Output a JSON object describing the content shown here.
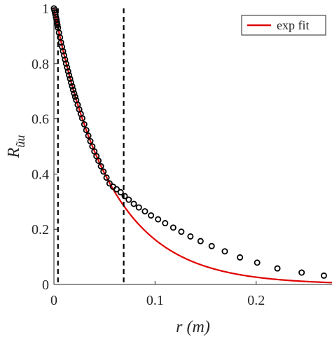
{
  "chart_data": {
    "type": "scatter",
    "xlabel": "r (m)",
    "ylabel": "R_ũu",
    "xlim": [
      0,
      0.275
    ],
    "ylim": [
      0,
      1
    ],
    "x_ticks": [
      "0",
      "0.1",
      "0.2"
    ],
    "y_ticks": [
      "0",
      "0.2",
      "0.4",
      "0.6",
      "0.8",
      "1"
    ],
    "grid": false,
    "legend": {
      "position": "top-right",
      "entries": [
        "exp fit"
      ]
    },
    "fit_color": "#e00000",
    "marker_color": "#000000",
    "vertical_lines_x": [
      0.004,
      0.069
    ],
    "fit_function": "exp(-r/0.055)",
    "measured": {
      "x": [
        0.0,
        0.0005,
        0.001,
        0.0015,
        0.002,
        0.0025,
        0.003,
        0.0035,
        0.004,
        0.005,
        0.006,
        0.007,
        0.008,
        0.009,
        0.01,
        0.011,
        0.012,
        0.013,
        0.014,
        0.015,
        0.016,
        0.017,
        0.018,
        0.019,
        0.02,
        0.021,
        0.022,
        0.0235,
        0.025,
        0.0265,
        0.028,
        0.03,
        0.032,
        0.034,
        0.036,
        0.038,
        0.04,
        0.042,
        0.044,
        0.0465,
        0.049,
        0.052,
        0.055,
        0.0585,
        0.062,
        0.066,
        0.07,
        0.074,
        0.079,
        0.084,
        0.09,
        0.096,
        0.103,
        0.11,
        0.118,
        0.126,
        0.135,
        0.145,
        0.156,
        0.169,
        0.184,
        0.201,
        0.221,
        0.245,
        0.267
      ],
      "y": [
        1.0,
        0.993,
        0.985,
        0.977,
        0.968,
        0.96,
        0.95,
        0.94,
        0.93,
        0.912,
        0.895,
        0.877,
        0.861,
        0.845,
        0.83,
        0.815,
        0.8,
        0.786,
        0.772,
        0.758,
        0.745,
        0.731,
        0.718,
        0.705,
        0.692,
        0.68,
        0.668,
        0.651,
        0.634,
        0.618,
        0.602,
        0.58,
        0.559,
        0.539,
        0.519,
        0.5,
        0.482,
        0.465,
        0.448,
        0.428,
        0.409,
        0.387,
        0.366,
        0.354,
        0.345,
        0.334,
        0.32,
        0.307,
        0.292,
        0.279,
        0.265,
        0.25,
        0.236,
        0.222,
        0.206,
        0.191,
        0.174,
        0.157,
        0.139,
        0.12,
        0.098,
        0.079,
        0.058,
        0.043,
        0.032
      ]
    }
  }
}
